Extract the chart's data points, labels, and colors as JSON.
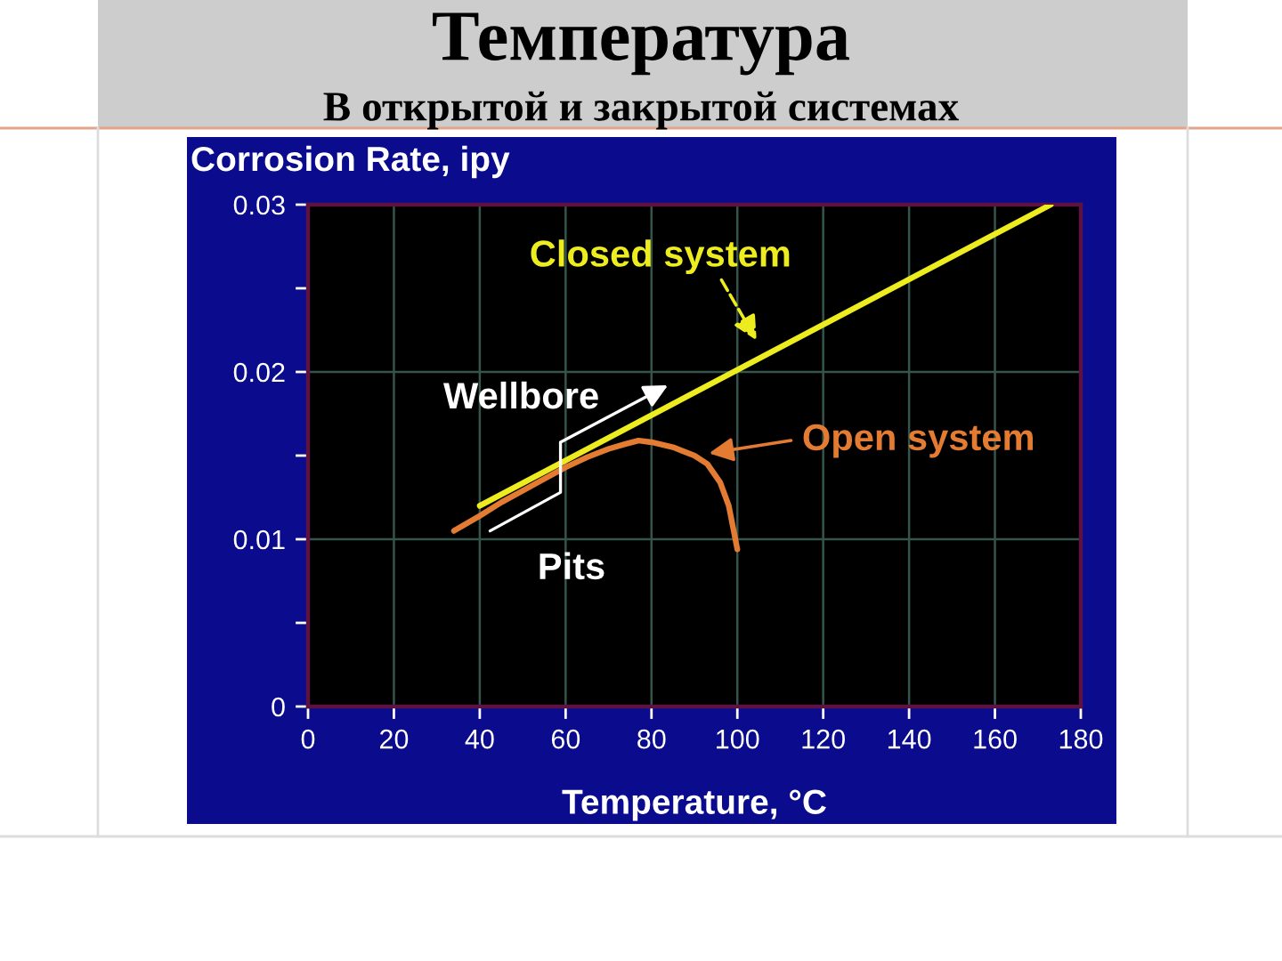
{
  "chart_data": {
    "type": "line",
    "title": "Температура",
    "subtitle": "В открытой и закрытой системах",
    "xlabel": "Temperature, °C",
    "ylabel": "Corrosion Rate, ipy",
    "annotations": [
      "Wellbore",
      "Pits"
    ],
    "series": [
      {
        "name": "Closed system",
        "color": "#ecec1e",
        "x": [
          40,
          173
        ],
        "values": [
          0.012,
          0.03
        ]
      },
      {
        "name": "Open system",
        "color": "#e37b32",
        "x": [
          34,
          40,
          45,
          50,
          55,
          60,
          65,
          70,
          74,
          77,
          80,
          85,
          90,
          93,
          96,
          98,
          100
        ],
        "values": [
          0.0105,
          0.0114,
          0.0122,
          0.0129,
          0.0136,
          0.0143,
          0.0149,
          0.0154,
          0.0157,
          0.0159,
          0.0158,
          0.0155,
          0.015,
          0.0145,
          0.0134,
          0.012,
          0.0094
        ]
      }
    ],
    "xlim": [
      0,
      180
    ],
    "ylim": [
      0,
      0.03
    ],
    "xticks": [
      0,
      20,
      40,
      60,
      80,
      100,
      120,
      140,
      160,
      180
    ],
    "yticks": [
      0,
      {
        "value": 0.005,
        "label": null
      },
      0.01,
      {
        "value": 0.015,
        "label": null
      },
      0.02,
      {
        "value": 0.025,
        "label": null
      },
      0.03
    ],
    "grid": true
  }
}
